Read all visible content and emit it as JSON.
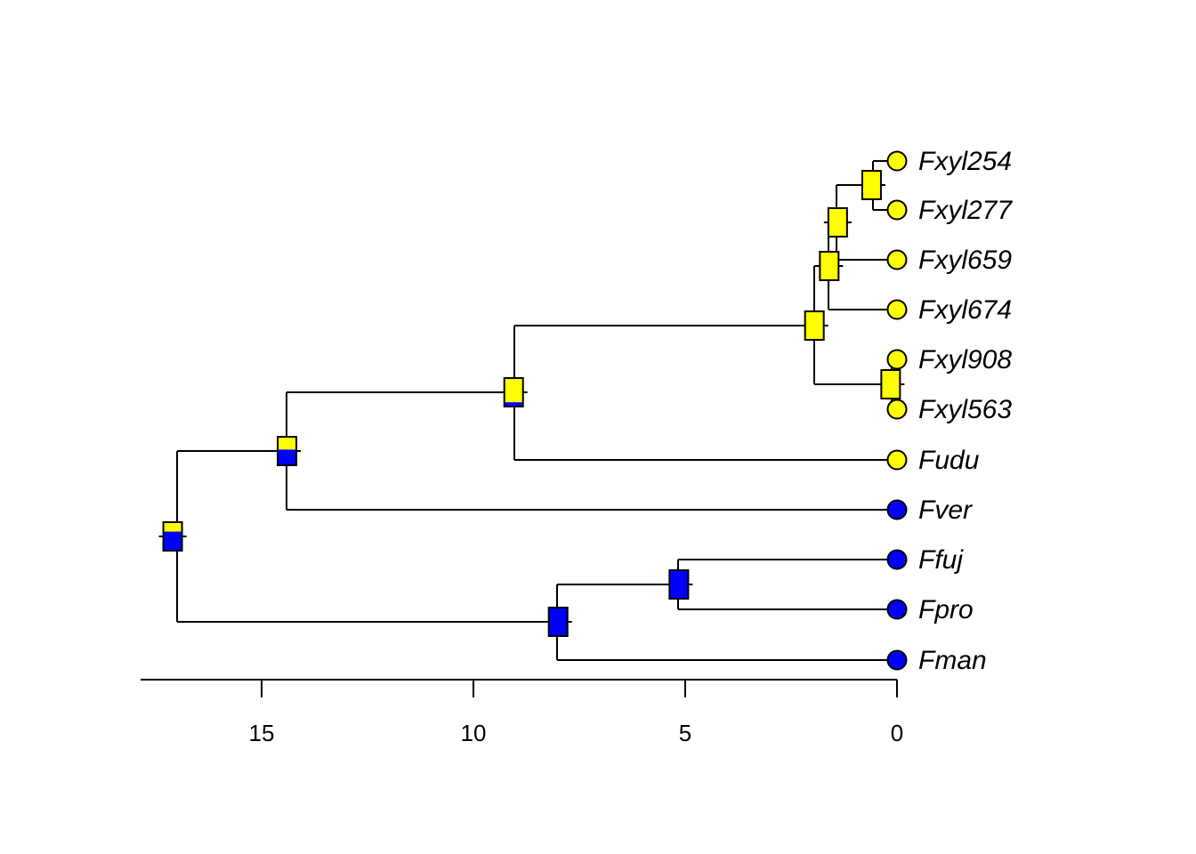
{
  "colors": {
    "state_A": "#ffff00",
    "state_B": "#0000ff",
    "line": "#000000"
  },
  "axis": {
    "ticks": [
      {
        "value": 15,
        "label": "15"
      },
      {
        "value": 10,
        "label": "10"
      },
      {
        "value": 5,
        "label": "5"
      },
      {
        "value": 0,
        "label": "0"
      }
    ]
  },
  "tips": [
    {
      "label": "Fxyl254",
      "state": "A"
    },
    {
      "label": "Fxyl277",
      "state": "A"
    },
    {
      "label": "Fxyl659",
      "state": "A"
    },
    {
      "label": "Fxyl674",
      "state": "A"
    },
    {
      "label": "Fxyl908",
      "state": "A"
    },
    {
      "label": "Fxyl563",
      "state": "A"
    },
    {
      "label": "Fudu",
      "state": "A"
    },
    {
      "label": "Fver",
      "state": "B"
    },
    {
      "label": "Ffuj",
      "state": "B"
    },
    {
      "label": "Fpro",
      "state": "B"
    },
    {
      "label": "Fman",
      "state": "B"
    }
  ],
  "nodes": [
    {
      "id": "n_254_277",
      "age": 0.6,
      "prob_A": 1.0
    },
    {
      "id": "n_254_659",
      "age": 1.4,
      "prob_A": 1.0
    },
    {
      "id": "n_254_674",
      "age": 1.6,
      "prob_A": 1.0
    },
    {
      "id": "n_908_563",
      "age": 0.15,
      "prob_A": 1.0
    },
    {
      "id": "n_xyl",
      "age": 1.95,
      "prob_A": 1.0
    },
    {
      "id": "n_udu",
      "age": 9.05,
      "prob_A": 0.85
    },
    {
      "id": "n_ver",
      "age": 14.4,
      "prob_A": 0.45
    },
    {
      "id": "n_root",
      "age": 17.1,
      "prob_A": 0.33
    },
    {
      "id": "n_fuj_pro",
      "age": 5.15,
      "prob_A": 0.0
    },
    {
      "id": "n_man",
      "age": 8.0,
      "prob_A": 0.0
    }
  ]
}
